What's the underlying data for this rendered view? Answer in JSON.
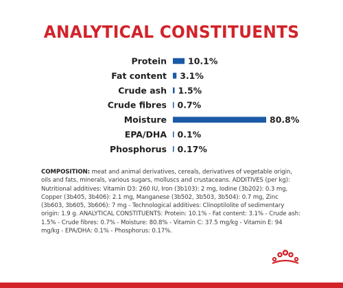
{
  "page": {
    "title": "ANALYTICAL CONSTITUENTS",
    "composition_heading": "COMPOSITION:",
    "composition_text": "meat and animal derivatives, cereals, derivatives of vegetable origin, oils and fats, minerals, various sugars, molluscs and crustaceans. ADDITIVES (per kg): Nutritional additives: Vitamin D3: 260 IU, Iron (3b103): 2 mg, Iodine (3b202): 0.3 mg, Copper (3b405, 3b406): 2.1 mg, Manganese (3b502, 3b503, 3b504): 0.7 mg, Zinc (3b603, 3b605, 3b606): 7 mg - Technological additives: Clinoptilolite of sedimentary origin: 1.9 g. ANALYTICAL CONSTITUENTS: Protein: 10.1% - Fat content: 3.1% - Crude ash: 1.5% - Crude fibres: 0.7% - Moisture: 80.8% - Vitamin C: 37.5 mg/kg - Vitamin E: 94 mg/kg - EPA/DHA: 0.1% - Phosphorus: 0.17%.",
    "accent_color": "#d2232a",
    "bar_color": "#1b5aa6",
    "logo_icon": "royal-canin-crown-icon"
  },
  "chart_data": {
    "type": "bar",
    "orientation": "horizontal",
    "categories": [
      "Protein",
      "Fat content",
      "Crude ash",
      "Crude fibres",
      "Moisture",
      "EPA/DHA",
      "Phosphorus"
    ],
    "values": [
      10.1,
      3.1,
      1.5,
      0.7,
      80.8,
      0.1,
      0.17
    ],
    "value_labels": [
      "10.1%",
      "3.1%",
      "1.5%",
      "0.7%",
      "80.8%",
      "0.1%",
      "0.17%"
    ],
    "unit": "%",
    "title": "ANALYTICAL CONSTITUENTS",
    "xlabel": "",
    "ylabel": "",
    "xlim": [
      0,
      80.8
    ],
    "grid": false,
    "legend": "none"
  }
}
